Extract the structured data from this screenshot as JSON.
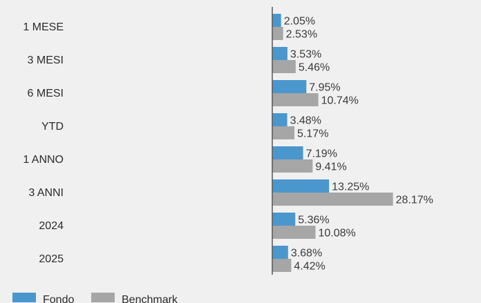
{
  "chart_data": {
    "type": "bar",
    "orientation": "horizontal",
    "categories": [
      "1 MESE",
      "3 MESI",
      "6 MESI",
      "YTD",
      "1 ANNO",
      "3 ANNI",
      "2024",
      "2025"
    ],
    "series": [
      {
        "name": "Fondo",
        "values": [
          2.05,
          3.53,
          7.95,
          3.48,
          7.19,
          13.25,
          5.36,
          3.68
        ],
        "color": "#4a97cd"
      },
      {
        "name": "Benchmark",
        "values": [
          2.53,
          5.46,
          10.74,
          5.17,
          9.41,
          28.17,
          10.08,
          4.42
        ],
        "color": "#a6a6a6"
      }
    ],
    "value_labels": {
      "Fondo": [
        "2.05%",
        "3.53%",
        "7.95%",
        "3.48%",
        "7.19%",
        "13.25%",
        "5.36%",
        "3.68%"
      ],
      "Benchmark": [
        "2.53%",
        "5.46%",
        "10.74%",
        "5.17%",
        "9.41%",
        "28.17%",
        "10.08%",
        "4.42%"
      ]
    },
    "title": "",
    "xlabel": "",
    "ylabel": "",
    "grid": false,
    "legend_position": "bottom-left",
    "axis_color": "#555555"
  }
}
